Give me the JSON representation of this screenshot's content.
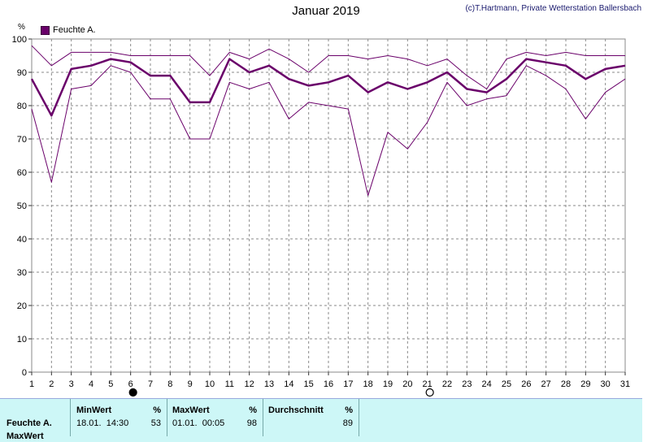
{
  "title": "Januar 2019",
  "credit": "(c)T.Hartmann, Private Wetterstation Ballersbach",
  "unit": "%",
  "legend": "Feuchte A.",
  "colors": {
    "series": "#6a006a",
    "grid": "#8a8a8a",
    "stats_bg": "#cdf7f7"
  },
  "moon_icons": [
    {
      "name": "new-moon-icon",
      "day": 6
    },
    {
      "name": "full-moon-icon",
      "day": 21
    }
  ],
  "stats": {
    "row_label": "Feuchte A.",
    "row_label2": "MaxWert",
    "min_header": "MinWert",
    "min_unit": "%",
    "min_when": "18.01.  14:30",
    "min_value": "53",
    "max_header": "MaxWert",
    "max_unit": "%",
    "max_when": "01.01.  00:05",
    "max_value": "98",
    "avg_header": "Durchschnitt",
    "avg_unit": "%",
    "avg_value": "89"
  },
  "chart_data": {
    "type": "line",
    "x": [
      1,
      2,
      3,
      4,
      5,
      6,
      7,
      8,
      9,
      10,
      11,
      12,
      13,
      14,
      15,
      16,
      17,
      18,
      19,
      20,
      21,
      22,
      23,
      24,
      25,
      26,
      27,
      28,
      29,
      30,
      31
    ],
    "ylim": [
      0,
      100
    ],
    "yticks": [
      0,
      10,
      20,
      30,
      40,
      50,
      60,
      70,
      80,
      90,
      100
    ],
    "grid": true,
    "legend_position": "top-left",
    "series": [
      {
        "name": "Feuchte A.",
        "role": "mean",
        "values": [
          88,
          77,
          91,
          92,
          94,
          93,
          89,
          89,
          81,
          81,
          94,
          90,
          92,
          88,
          86,
          87,
          89,
          84,
          87,
          85,
          87,
          90,
          85,
          84,
          88,
          94,
          93,
          92,
          88,
          91,
          92
        ]
      },
      {
        "role": "max",
        "values": [
          98,
          92,
          96,
          96,
          96,
          95,
          95,
          95,
          95,
          89,
          96,
          94,
          97,
          94,
          90,
          95,
          95,
          94,
          95,
          94,
          92,
          94,
          89,
          85,
          94,
          96,
          95,
          96,
          95,
          95,
          95
        ]
      },
      {
        "role": "min",
        "values": [
          79,
          57,
          85,
          86,
          92,
          90,
          82,
          82,
          70,
          70,
          87,
          85,
          87,
          76,
          81,
          80,
          79,
          53,
          72,
          67,
          75,
          87,
          80,
          82,
          83,
          92,
          89,
          85,
          76,
          84,
          88
        ]
      }
    ]
  }
}
